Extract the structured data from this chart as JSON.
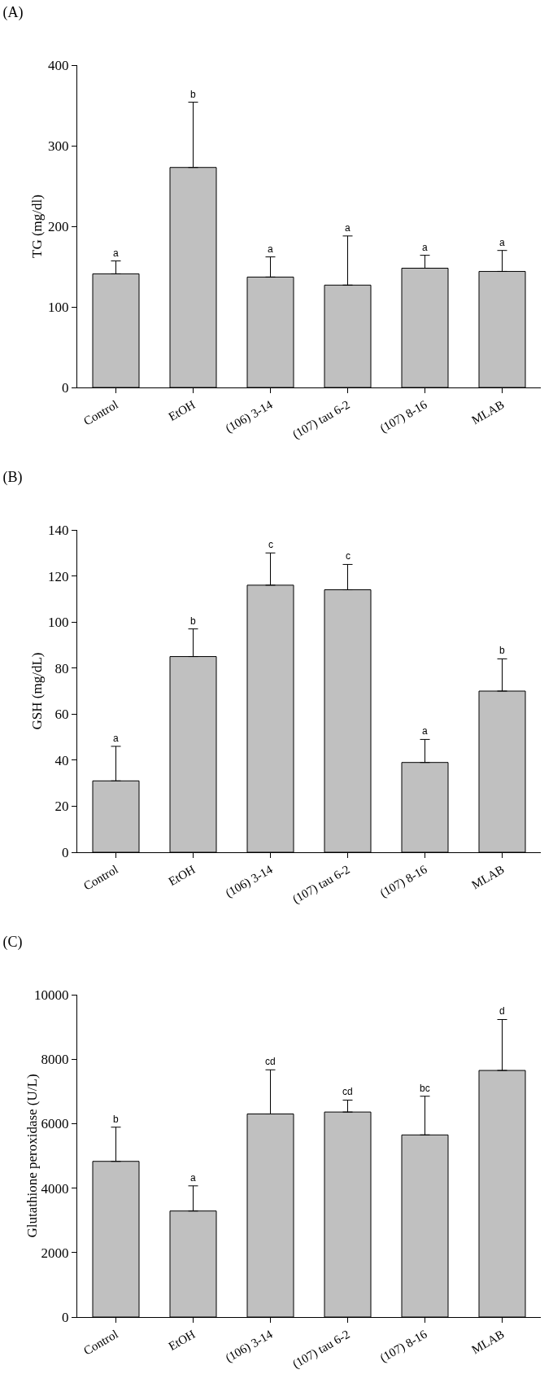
{
  "chart_data": [
    {
      "type": "bar",
      "title": "(A)",
      "ylabel": "TG (mg/dl)",
      "categories": [
        "Control",
        "EtOH",
        "(106) 3-14",
        "(107) tau 6-2",
        "(107) 8-16",
        "MLAB"
      ],
      "values": [
        141,
        273,
        137,
        127,
        148,
        144
      ],
      "errors": [
        [
          141,
          157
        ],
        [
          273,
          354
        ],
        [
          137,
          162
        ],
        [
          127,
          188
        ],
        [
          148,
          164
        ],
        [
          144,
          170
        ]
      ],
      "color": "#c0c0c0",
      "ylim": [
        0,
        400
      ],
      "yticks": [
        0,
        100,
        200,
        300,
        400
      ],
      "grid": false,
      "legend": false,
      "annotations": [
        {
          "text": "a",
          "x": "Control",
          "y": 157
        },
        {
          "text": "b",
          "x": "EtOH",
          "y": 354
        },
        {
          "text": "a",
          "x": "(106) 3-14",
          "y": 162
        },
        {
          "text": "a",
          "x": "(107) tau 6-2",
          "y": 188
        },
        {
          "text": "a",
          "x": "(107) 8-16",
          "y": 164
        },
        {
          "text": "a",
          "x": "MLAB",
          "y": 170
        }
      ]
    },
    {
      "type": "bar",
      "title": "(B)",
      "ylabel": "GSH (mg/dL)",
      "categories": [
        "Control",
        "EtOH",
        "(106) 3-14",
        "(107) tau 6-2",
        "(107) 8-16",
        "MLAB"
      ],
      "values": [
        31,
        85,
        116,
        114,
        39,
        70
      ],
      "errors": [
        [
          31,
          46
        ],
        [
          85,
          97
        ],
        [
          116,
          130
        ],
        [
          114,
          125
        ],
        [
          39,
          49
        ],
        [
          70,
          84
        ]
      ],
      "color": "#c0c0c0",
      "ylim": [
        0,
        140
      ],
      "yticks": [
        0,
        20,
        40,
        60,
        80,
        100,
        120,
        140
      ],
      "grid": false,
      "legend": false,
      "annotations": [
        {
          "text": "a",
          "x": "Control",
          "y": 46
        },
        {
          "text": "b",
          "x": "EtOH",
          "y": 97
        },
        {
          "text": "c",
          "x": "(106) 3-14",
          "y": 130
        },
        {
          "text": "c",
          "x": "(107) tau 6-2",
          "y": 125
        },
        {
          "text": "a",
          "x": "(107) 8-16",
          "y": 49
        },
        {
          "text": "b",
          "x": "MLAB",
          "y": 84
        }
      ]
    },
    {
      "type": "bar",
      "title": "(C)",
      "ylabel": "Glutathione peroxidase (U/L)",
      "categories": [
        "Control",
        "EtOH",
        "(106) 3-14",
        "(107) tau 6-2",
        "(107) 8-16",
        "MLAB"
      ],
      "values": [
        4830,
        3290,
        6300,
        6360,
        5650,
        7650
      ],
      "errors": [
        [
          4830,
          5890
        ],
        [
          3290,
          4070
        ],
        [
          6300,
          7670
        ],
        [
          6360,
          6730
        ],
        [
          5650,
          6850
        ],
        [
          7650,
          9230
        ]
      ],
      "color": "#c0c0c0",
      "ylim": [
        0,
        10000
      ],
      "yticks": [
        0,
        2000,
        4000,
        6000,
        8000,
        10000
      ],
      "grid": false,
      "legend": false,
      "annotations": [
        {
          "text": "b",
          "x": "Control",
          "y": 5890
        },
        {
          "text": "a",
          "x": "EtOH",
          "y": 4070
        },
        {
          "text": "cd",
          "x": "(106) 3-14",
          "y": 7670
        },
        {
          "text": "cd",
          "x": "(107) tau 6-2",
          "y": 6730
        },
        {
          "text": "bc",
          "x": "(107) 8-16",
          "y": 6850
        },
        {
          "text": "d",
          "x": "MLAB",
          "y": 9230
        }
      ]
    }
  ]
}
